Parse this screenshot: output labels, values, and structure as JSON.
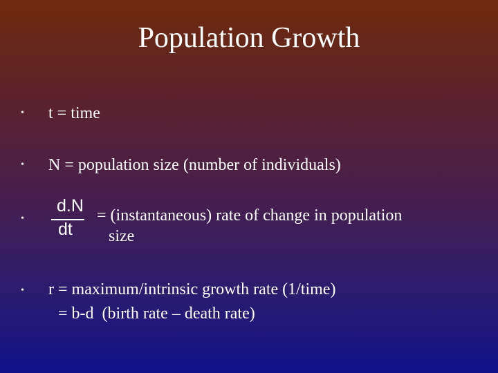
{
  "slide": {
    "title": "Population Growth",
    "bullets": [
      {
        "marker": "•",
        "text": "t = time"
      },
      {
        "marker": "•",
        "text": "N = population size (number of individuals)"
      },
      {
        "marker": "•",
        "fraction": {
          "numerator": "d.N",
          "denominator": "dt"
        },
        "text_line1": "= (instantaneous) rate of change in population",
        "text_line2": "size"
      },
      {
        "marker": "•",
        "text_line1": "r = maximum/intrinsic growth rate (1/time)",
        "text_line2": "= b-d  (birth rate – death rate)"
      }
    ]
  }
}
